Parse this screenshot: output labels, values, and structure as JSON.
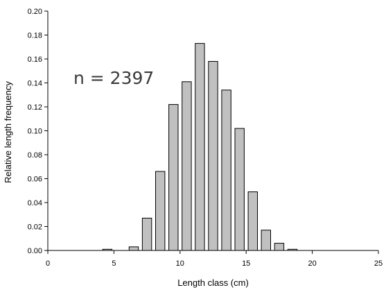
{
  "chart_data": {
    "type": "bar",
    "title": "",
    "xlabel": "Length class (cm)",
    "ylabel": "Relative length frequency",
    "annotation": "n = 2397",
    "xlim": [
      0,
      25
    ],
    "ylim": [
      0,
      0.2
    ],
    "xticks": [
      0,
      5,
      10,
      15,
      20,
      25
    ],
    "yticks": [
      0,
      0.02,
      0.04,
      0.06,
      0.08,
      0.1,
      0.12,
      0.14,
      0.16,
      0.18,
      0.2
    ],
    "ytick_labels": [
      "0.00",
      "0.02",
      "0.04",
      "0.06",
      "0.08",
      "0.10",
      "0.12",
      "0.14",
      "0.16",
      "0.18",
      "0.20"
    ],
    "xtick_labels": [
      "0",
      "5",
      "10",
      "15",
      "20",
      "25"
    ],
    "x": [
      4.5,
      6.5,
      7.5,
      8.5,
      9.5,
      10.5,
      11.5,
      12.5,
      13.5,
      14.5,
      15.5,
      16.5,
      17.5,
      18.5
    ],
    "values": [
      0.001,
      0.003,
      0.027,
      0.066,
      0.122,
      0.141,
      0.173,
      0.158,
      0.134,
      0.102,
      0.049,
      0.017,
      0.006,
      0.001
    ],
    "bar_width": 0.7,
    "grid": false,
    "colors": {
      "bar_fill": "#c0c0c0",
      "bar_stroke": "#000000"
    }
  }
}
